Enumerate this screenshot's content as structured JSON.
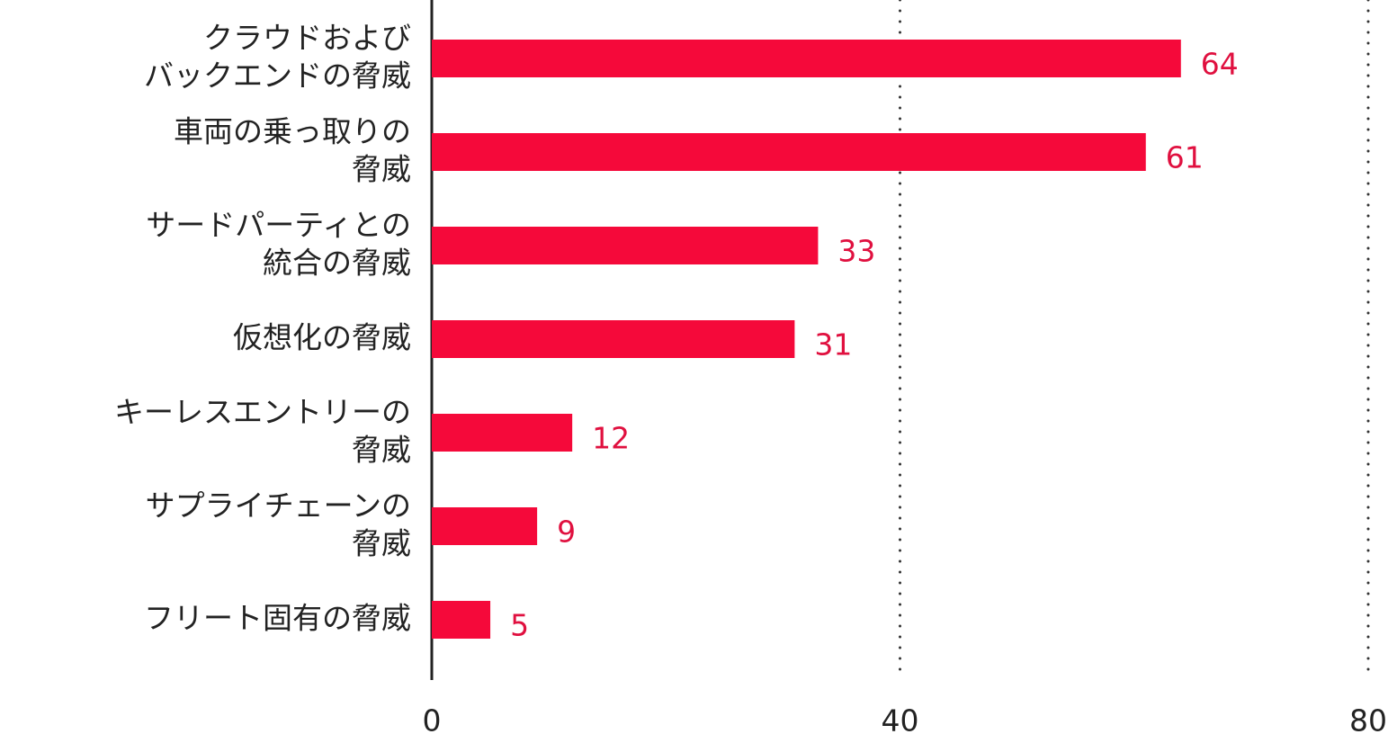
{
  "chart_data": {
    "type": "hbar",
    "categories": [
      [
        "クラウドおよび",
        "バックエンドの脅威"
      ],
      [
        "車両の乗っ取りの",
        "脅威"
      ],
      [
        "サードパーティとの",
        "統合の脅威"
      ],
      [
        "仮想化の脅威"
      ],
      [
        "キーレスエントリーの",
        "脅威"
      ],
      [
        "サプライチェーンの",
        "脅威"
      ],
      [
        "フリート固有の脅威"
      ]
    ],
    "values": [
      64,
      61,
      33,
      31,
      12,
      9,
      5
    ],
    "color": "#f5093a",
    "xlim": [
      0,
      80
    ],
    "xticks": [
      0,
      40,
      80
    ],
    "grid": true
  }
}
